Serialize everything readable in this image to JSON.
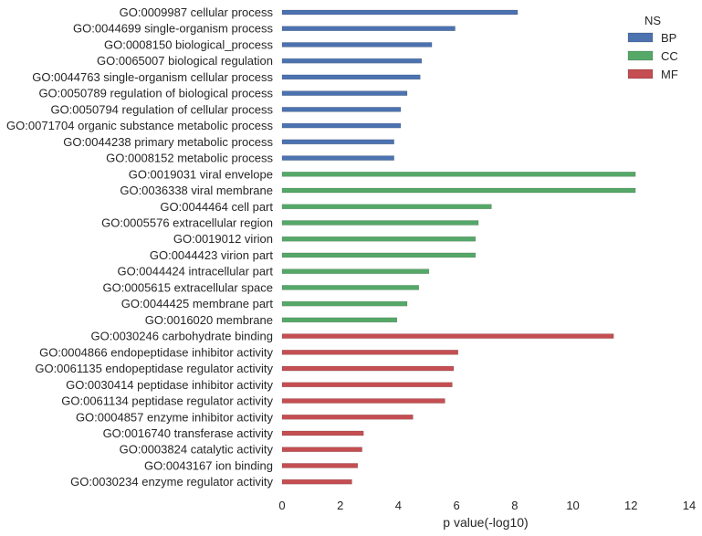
{
  "chart_data": {
    "type": "bar",
    "orientation": "horizontal",
    "xlabel": "p value(-log10)",
    "xlim": [
      0,
      14
    ],
    "xticks": [
      0,
      2,
      4,
      6,
      8,
      10,
      12,
      14
    ],
    "grid": false,
    "legend": {
      "title": "NS",
      "placement": "top-right",
      "entries": [
        {
          "label": "BP",
          "color": "#4c72b0"
        },
        {
          "label": "CC",
          "color": "#55a868"
        },
        {
          "label": "MF",
          "color": "#c44e52"
        }
      ]
    },
    "categories": [
      "GO:0009987 cellular process",
      "GO:0044699 single-organism process",
      "GO:0008150 biological_process",
      "GO:0065007 biological regulation",
      "GO:0044763 single-organism cellular process",
      "GO:0050789 regulation of biological process",
      "GO:0050794 regulation of cellular process",
      "GO:0071704 organic substance metabolic process",
      "GO:0044238 primary metabolic process",
      "GO:0008152 metabolic process",
      "GO:0019031 viral envelope",
      "GO:0036338 viral membrane",
      "GO:0044464 cell part",
      "GO:0005576 extracellular region",
      "GO:0019012 virion",
      "GO:0044423 virion part",
      "GO:0044424 intracellular part",
      "GO:0005615 extracellular space",
      "GO:0044425 membrane part",
      "GO:0016020 membrane",
      "GO:0030246 carbohydrate binding",
      "GO:0004866 endopeptidase inhibitor activity",
      "GO:0061135 endopeptidase regulator activity",
      "GO:0030414 peptidase inhibitor activity",
      "GO:0061134 peptidase regulator activity",
      "GO:0004857 enzyme inhibitor activity",
      "GO:0016740 transferase activity",
      "GO:0003824 catalytic activity",
      "GO:0043167 ion binding",
      "GO:0030234 enzyme regulator activity"
    ],
    "series": [
      {
        "name": "BP",
        "color": "#4c72b0",
        "values": [
          8.1,
          5.95,
          5.15,
          4.8,
          4.75,
          4.3,
          4.08,
          4.08,
          3.85,
          3.85,
          null,
          null,
          null,
          null,
          null,
          null,
          null,
          null,
          null,
          null,
          null,
          null,
          null,
          null,
          null,
          null,
          null,
          null,
          null,
          null
        ]
      },
      {
        "name": "CC",
        "color": "#55a868",
        "values": [
          null,
          null,
          null,
          null,
          null,
          null,
          null,
          null,
          null,
          null,
          12.15,
          12.15,
          7.2,
          6.75,
          6.65,
          6.65,
          5.05,
          4.7,
          4.3,
          3.95,
          null,
          null,
          null,
          null,
          null,
          null,
          null,
          null,
          null,
          null
        ]
      },
      {
        "name": "MF",
        "color": "#c44e52",
        "values": [
          null,
          null,
          null,
          null,
          null,
          null,
          null,
          null,
          null,
          null,
          null,
          null,
          null,
          null,
          null,
          null,
          null,
          null,
          null,
          null,
          11.4,
          6.05,
          5.9,
          5.85,
          5.6,
          4.5,
          2.8,
          2.75,
          2.6,
          2.4
        ]
      }
    ]
  }
}
